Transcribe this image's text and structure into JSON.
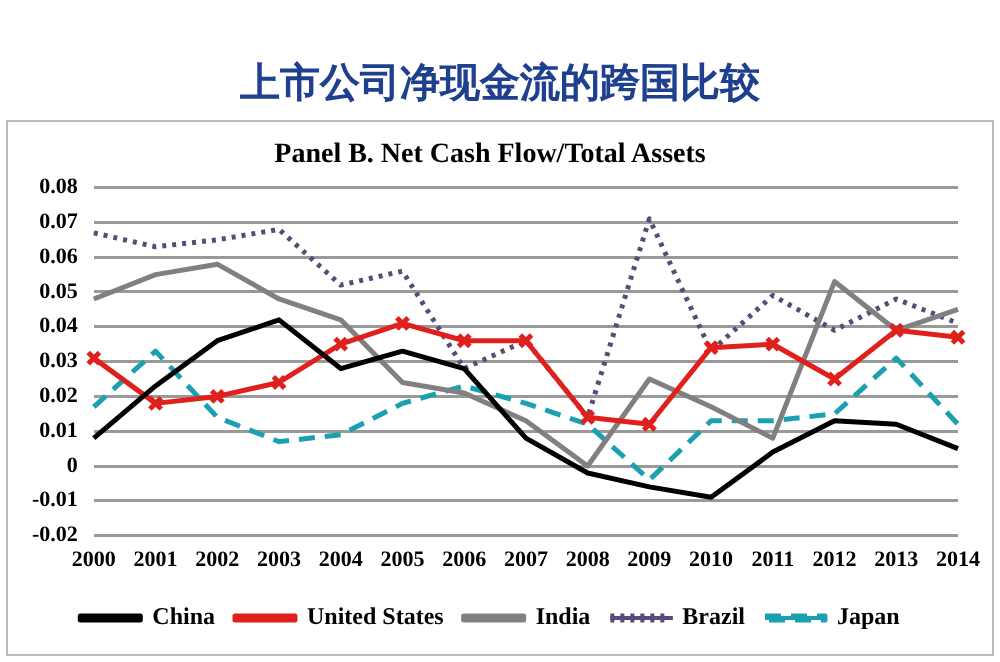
{
  "chart_data": {
    "type": "line",
    "title": "上市公司净现金流的跨国比较",
    "subtitle": "Panel B. Net Cash Flow/Total Assets",
    "categories": [
      "2000",
      "2001",
      "2002",
      "2003",
      "2004",
      "2005",
      "2006",
      "2007",
      "2008",
      "2009",
      "2010",
      "2011",
      "2012",
      "2013",
      "2014"
    ],
    "series": [
      {
        "name": "China",
        "color": "#000000",
        "line_style": "solid",
        "marker": "none",
        "values": [
          0.008,
          0.023,
          0.036,
          0.042,
          0.028,
          0.033,
          0.028,
          0.008,
          -0.002,
          -0.006,
          -0.009,
          0.004,
          0.013,
          0.012,
          0.005
        ]
      },
      {
        "name": "United States",
        "color": "#e0201c",
        "line_style": "solid",
        "marker": "cross",
        "values": [
          0.031,
          0.018,
          0.02,
          0.024,
          0.035,
          0.041,
          0.036,
          0.036,
          0.014,
          0.012,
          0.034,
          0.035,
          0.025,
          0.039,
          0.037
        ]
      },
      {
        "name": "India",
        "color": "#808080",
        "line_style": "solid",
        "marker": "none",
        "values": [
          0.048,
          0.055,
          0.058,
          0.048,
          0.042,
          0.024,
          0.021,
          0.013,
          0.0,
          0.025,
          0.017,
          0.008,
          0.053,
          0.039,
          0.045
        ]
      },
      {
        "name": "Brazil",
        "color": "#5a4a7a",
        "line_style": "dotted",
        "marker": "none",
        "values": [
          0.067,
          0.063,
          0.065,
          0.068,
          0.052,
          0.056,
          0.028,
          0.036,
          0.014,
          0.071,
          0.033,
          0.049,
          0.039,
          0.048,
          0.041
        ]
      },
      {
        "name": "Japan",
        "color": "#1aa0b0",
        "line_style": "dashed",
        "marker": "none",
        "values": [
          0.017,
          0.033,
          0.014,
          0.007,
          0.009,
          0.018,
          0.023,
          0.018,
          0.012,
          -0.004,
          0.013,
          0.013,
          0.015,
          0.031,
          0.012
        ]
      }
    ],
    "ylim": [
      -0.02,
      0.08
    ],
    "yticks": [
      -0.02,
      -0.01,
      0,
      0.01,
      0.02,
      0.03,
      0.04,
      0.05,
      0.06,
      0.07,
      0.08
    ],
    "grid": "y",
    "legend": "bottom"
  }
}
